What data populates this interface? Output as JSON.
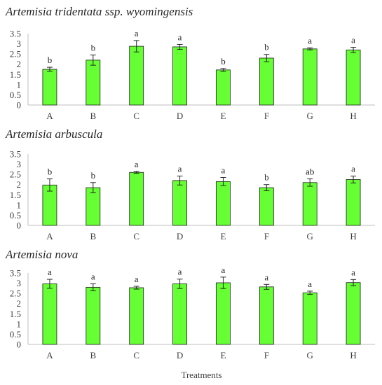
{
  "chart_data": [
    {
      "type": "bar",
      "title": "Artemisia tridentata ssp. wyomingensis",
      "categories": [
        "A",
        "B",
        "C",
        "D",
        "E",
        "F",
        "G",
        "H"
      ],
      "values": [
        1.75,
        2.2,
        2.88,
        2.85,
        1.72,
        2.3,
        2.75,
        2.7
      ],
      "errors": [
        0.1,
        0.25,
        0.28,
        0.12,
        0.07,
        0.18,
        0.05,
        0.13
      ],
      "letters": [
        "b",
        "b",
        "a",
        "a",
        "b",
        "b",
        "a",
        "a"
      ],
      "ylim": [
        0,
        3.5
      ],
      "yticks": [
        "0",
        "0.5",
        "1",
        "1.5",
        "2",
        "2.5",
        "3",
        "3.5"
      ],
      "xlabel": "",
      "ylabel": ""
    },
    {
      "type": "bar",
      "title": "Artemisia arbuscula",
      "categories": [
        "A",
        "B",
        "C",
        "D",
        "E",
        "F",
        "G",
        "H"
      ],
      "values": [
        1.98,
        1.85,
        2.6,
        2.2,
        2.15,
        1.85,
        2.1,
        2.25
      ],
      "errors": [
        0.3,
        0.25,
        0.05,
        0.22,
        0.2,
        0.15,
        0.18,
        0.17
      ],
      "letters": [
        "b",
        "b",
        "a",
        "a",
        "a",
        "b",
        "ab",
        "a"
      ],
      "ylim": [
        0,
        3.5
      ],
      "yticks": [
        "0",
        "0.5",
        "1",
        "1.5",
        "2",
        "2.5",
        "3",
        "3.5"
      ],
      "xlabel": "",
      "ylabel": ""
    },
    {
      "type": "bar",
      "title": "Artemisia nova",
      "categories": [
        "A",
        "B",
        "C",
        "D",
        "E",
        "F",
        "G",
        "H"
      ],
      "values": [
        2.97,
        2.8,
        2.78,
        2.97,
        3.02,
        2.82,
        2.53,
        3.03
      ],
      "errors": [
        0.22,
        0.17,
        0.07,
        0.23,
        0.28,
        0.12,
        0.08,
        0.15
      ],
      "letters": [
        "a",
        "a",
        "a",
        "a",
        "a",
        "a",
        "a",
        "a"
      ],
      "ylim": [
        0,
        3.5
      ],
      "yticks": [
        "0",
        "0.5",
        "1",
        "1.5",
        "2",
        "2.5",
        "3",
        "3.5"
      ],
      "xlabel": "Treatments",
      "ylabel": ""
    }
  ],
  "colors": {
    "bar_fill": "#66ff33",
    "bar_stroke": "#1f1f1f",
    "axis": "#bfbfbf",
    "text": "#404040"
  }
}
